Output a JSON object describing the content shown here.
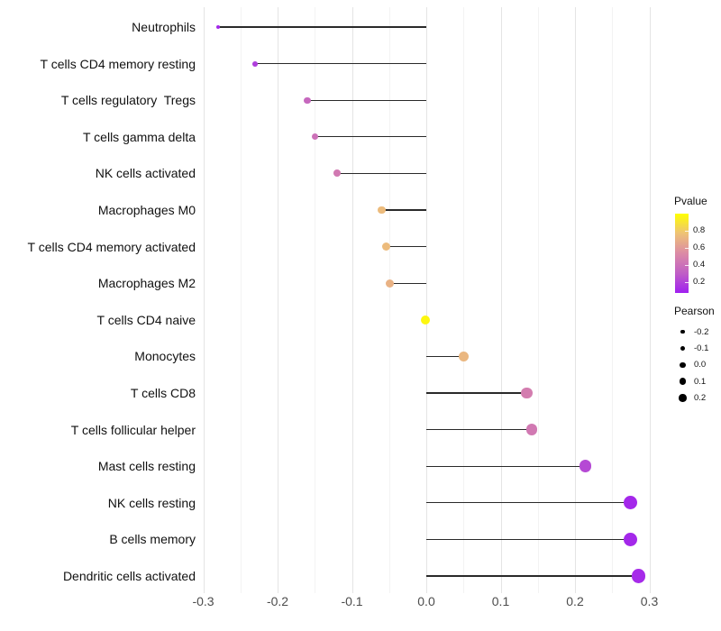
{
  "chart_data": {
    "type": "scatter",
    "variant": "horizontal-lollipop",
    "title": "",
    "xlabel": "",
    "ylabel": "",
    "grid": "vertical-major-and-minor",
    "legend_position": "right",
    "xlim": [
      -0.305,
      0.317
    ],
    "categories": [
      "Neutrophils",
      "T cells CD4 memory resting",
      "T cells regulatory  Tregs",
      "T cells gamma delta",
      "NK cells activated",
      "Macrophages M0",
      "T cells CD4 memory activated",
      "Macrophages M2",
      "T cells CD4 naive",
      "Monocytes",
      "T cells CD8",
      "T cells follicular helper",
      "Mast cells resting",
      "NK cells resting",
      "B cells memory",
      "Dendritic cells activated"
    ],
    "series": [
      {
        "name": "Pearson",
        "values": [
          -0.28,
          -0.23,
          -0.16,
          -0.15,
          -0.12,
          -0.06,
          -0.054,
          -0.049,
          -0.001,
          0.05,
          0.135,
          0.142,
          0.214,
          0.275,
          0.275,
          0.285
        ]
      },
      {
        "name": "Pvalue",
        "values": [
          0.1,
          0.18,
          0.35,
          0.4,
          0.44,
          0.74,
          0.74,
          0.7,
          0.97,
          0.72,
          0.46,
          0.44,
          0.22,
          0.1,
          0.1,
          0.11
        ]
      }
    ],
    "x_axis": {
      "major_ticks": [
        -0.3,
        -0.2,
        -0.1,
        0.0,
        0.1,
        0.2,
        0.3
      ],
      "tick_labels": [
        "-0.3",
        "-0.2",
        "-0.1",
        "0.0",
        "0.1",
        "0.2",
        "0.3"
      ],
      "minor_ticks": [
        -0.25,
        -0.15,
        -0.05,
        0.05,
        0.15,
        0.25
      ]
    },
    "legend": {
      "pvalue": {
        "title": "Pvalue",
        "tick_labels": [
          "0.8",
          "0.6",
          "0.4",
          "0.2"
        ],
        "tick_values": [
          0.8,
          0.6,
          0.4,
          0.2
        ],
        "range": [
          0.07,
          1.0
        ],
        "gradient_low_to_high": [
          "#A020F0",
          "#C05FC5",
          "#DC8BA5",
          "#EEC276",
          "#FFFF00"
        ]
      },
      "pearson": {
        "title": "Pearson",
        "items": [
          {
            "label": "-0.2",
            "value": -0.2
          },
          {
            "label": "-0.1",
            "value": -0.1
          },
          {
            "label": "0.0",
            "value": 0.0
          },
          {
            "label": "0.1",
            "value": 0.1
          },
          {
            "label": "0.2",
            "value": 0.2
          }
        ]
      }
    },
    "colors": {
      "stem": "#2a2a2a",
      "grid_major": "#e4e4e4",
      "grid_minor": "#f3f3f3",
      "size_legend_dot": "#000000"
    }
  }
}
